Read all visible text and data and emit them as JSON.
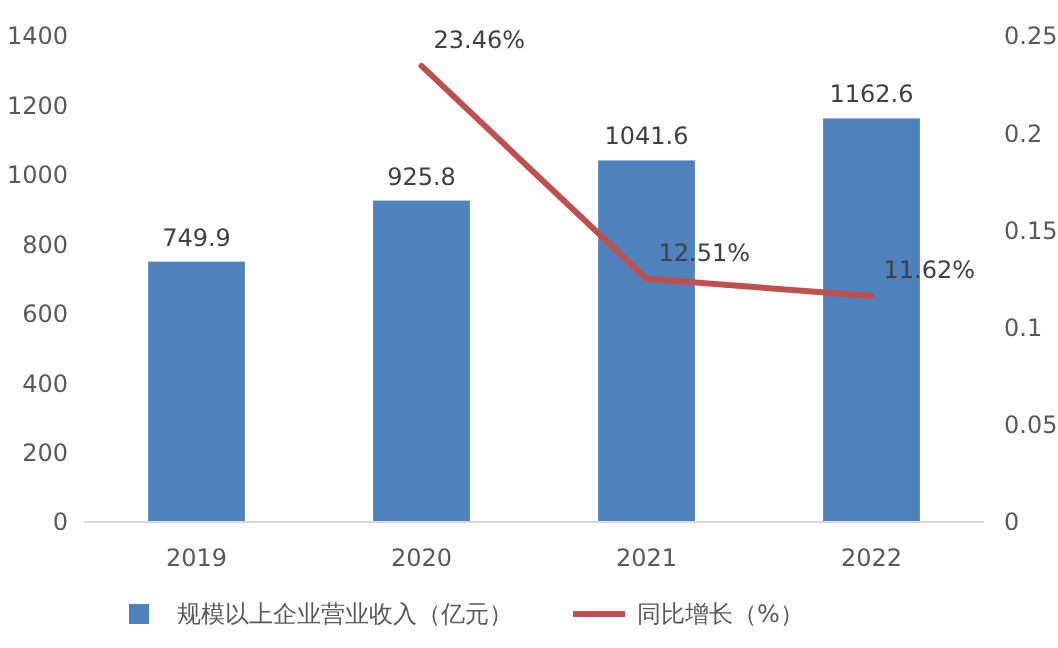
{
  "chart_data": {
    "type": "bar",
    "categories": [
      "2019",
      "2020",
      "2021",
      "2022"
    ],
    "series": [
      {
        "name": "规模以上企业营业收入（亿元）",
        "color": "#4f81bd",
        "values": [
          749.9,
          925.8,
          1041.6,
          1162.6
        ],
        "value_labels": [
          "749.9",
          "925.8",
          "1041.6",
          "1162.6"
        ]
      },
      {
        "name": "同比增长（%）",
        "type": "line",
        "axis": "y2",
        "color": "#c0504d",
        "values": [
          null,
          0.2346,
          0.1251,
          0.1162
        ],
        "value_labels": [
          null,
          "23.46%",
          "12.51%",
          "11.62%"
        ]
      }
    ],
    "ylim": [
      0,
      1400
    ],
    "yticks": [
      0,
      200,
      400,
      600,
      800,
      1000,
      1200,
      1400
    ],
    "y2lim": [
      0,
      0.25
    ],
    "y2ticks": [
      0,
      0.05,
      0.1,
      0.15,
      0.2,
      0.25
    ],
    "legend": "bottom",
    "marker": "none",
    "line_style": "solid",
    "grid": false
  }
}
